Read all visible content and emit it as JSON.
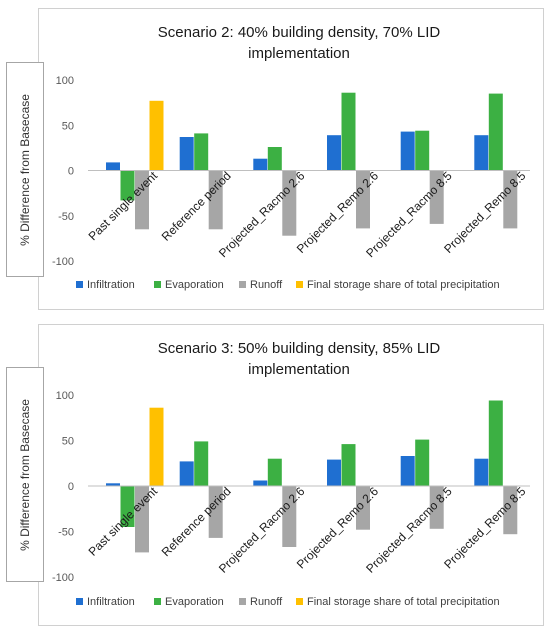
{
  "chart_data": [
    {
      "type": "bar",
      "title": "Scenario 2: 40% building density, 70% LID implementation",
      "title_lines": [
        "Scenario 2: 40% building density, 70% LID",
        "implementation"
      ],
      "ylabel": "% Difference from Basecase",
      "xlabel": "",
      "ylim": [
        -100,
        100
      ],
      "yticks": [
        100,
        50,
        0,
        -50,
        -100
      ],
      "grid": false,
      "legend_position": "bottom",
      "categories": [
        "Past single event",
        "Reference period",
        "Projected_Racmo 2.6",
        "Projected_Remo 2.6",
        "Projected_Racmo 8.5",
        "Projected_Remo 8.5"
      ],
      "series": [
        {
          "name": "Infiltration",
          "color": "#1f6fd1",
          "values": [
            9,
            37,
            13,
            39,
            43,
            39
          ]
        },
        {
          "name": "Evaporation",
          "color": "#3cb043",
          "values": [
            -33,
            41,
            26,
            86,
            44,
            85
          ]
        },
        {
          "name": "Runoff",
          "color": "#a6a6a6",
          "values": [
            -65,
            -65,
            -72,
            -64,
            -59,
            -64
          ]
        },
        {
          "name": "Final storage share of total precipitation",
          "color": "#ffc000",
          "values": [
            77,
            null,
            null,
            null,
            null,
            null
          ]
        }
      ]
    },
    {
      "type": "bar",
      "title": "Scenario 3: 50% building density, 85% LID implementation",
      "title_lines": [
        "Scenario 3: 50% building density, 85% LID",
        "implementation"
      ],
      "ylabel": "% Difference from Basecase",
      "xlabel": "",
      "ylim": [
        -100,
        100
      ],
      "yticks": [
        100,
        50,
        0,
        -50,
        -100
      ],
      "grid": false,
      "legend_position": "bottom",
      "categories": [
        "Past single event",
        "Reference period",
        "Projected_Racmo 2.6",
        "Projected_Remo 2.6",
        "Projected_Racmo 8.5",
        "Projected_Remo 8.5"
      ],
      "series": [
        {
          "name": "Infiltration",
          "color": "#1f6fd1",
          "values": [
            3,
            27,
            6,
            29,
            33,
            30
          ]
        },
        {
          "name": "Evaporation",
          "color": "#3cb043",
          "values": [
            -45,
            49,
            30,
            46,
            51,
            94
          ]
        },
        {
          "name": "Runoff",
          "color": "#a6a6a6",
          "values": [
            -73,
            -57,
            -67,
            -48,
            -47,
            -53
          ]
        },
        {
          "name": "Final storage share of total precipitation",
          "color": "#ffc000",
          "values": [
            86,
            null,
            null,
            null,
            null,
            null
          ]
        }
      ]
    }
  ]
}
